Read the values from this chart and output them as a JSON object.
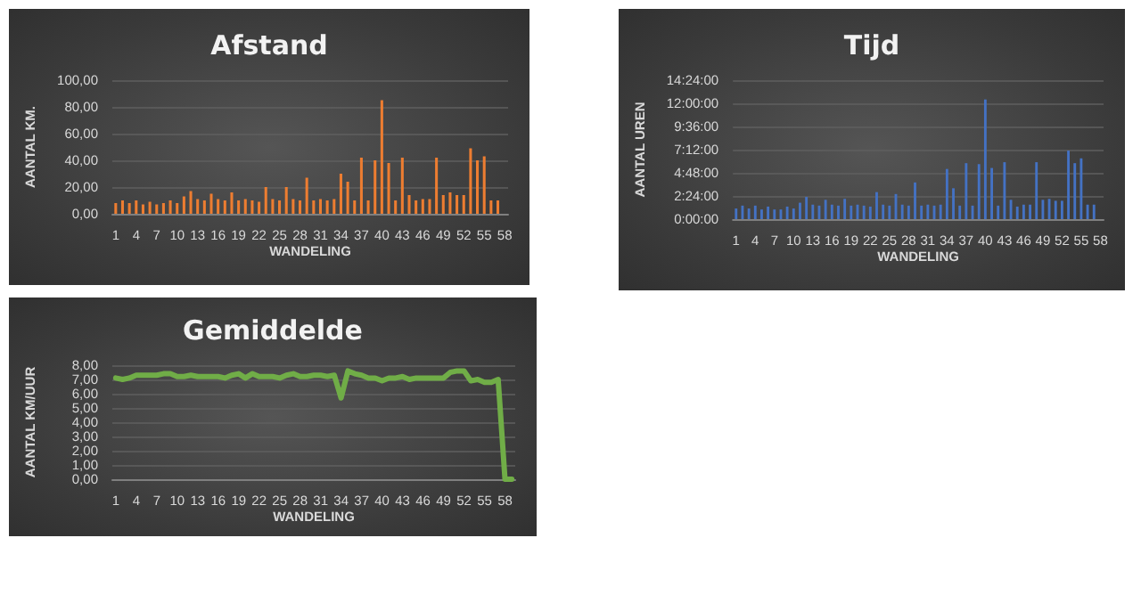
{
  "chart_data": [
    {
      "type": "bar",
      "title": "Afstand",
      "xlabel": "WANDELING",
      "ylabel": "AANTAL KM.",
      "categories": [
        "1",
        null,
        null,
        "4",
        null,
        null,
        "7",
        null,
        null,
        "10",
        null,
        null,
        "13",
        null,
        null,
        "16",
        null,
        null,
        "19",
        null,
        null,
        "22",
        null,
        null,
        "25",
        null,
        null,
        "28",
        null,
        null,
        "31",
        null,
        null,
        "34",
        null,
        null,
        "37",
        null,
        null,
        "40",
        null,
        null,
        "43",
        null,
        null,
        "46",
        null,
        null,
        "49",
        null,
        null,
        "52",
        null,
        null,
        "55",
        null,
        null,
        "58"
      ],
      "values": [
        8,
        10,
        8,
        10,
        7,
        9,
        7,
        8,
        10,
        8,
        13,
        17,
        11,
        10,
        15,
        11,
        10,
        16,
        10,
        11,
        10,
        9,
        20,
        11,
        10,
        20,
        11,
        10,
        27,
        10,
        11,
        10,
        11,
        30,
        24,
        10,
        42,
        10,
        40,
        85,
        38,
        10,
        42,
        14,
        10,
        11,
        11,
        42,
        14,
        16,
        14,
        14,
        49,
        40,
        43,
        10,
        10,
        null
      ],
      "color": "#ed7d31",
      "ylim": [
        0,
        100
      ],
      "yticks": [
        {
          "value": 0,
          "label": "0,00"
        },
        {
          "value": 20,
          "label": "20,00"
        },
        {
          "value": 40,
          "label": "40,00"
        },
        {
          "value": 60,
          "label": "60,00"
        },
        {
          "value": 80,
          "label": "80,00"
        },
        {
          "value": 100,
          "label": "100,00"
        }
      ],
      "grid": "y"
    },
    {
      "type": "bar",
      "title": "Tijd",
      "xlabel": "WANDELING",
      "ylabel": "AANTAL UREN",
      "categories": [
        "1",
        null,
        null,
        "4",
        null,
        null,
        "7",
        null,
        null,
        "10",
        null,
        null,
        "13",
        null,
        null,
        "16",
        null,
        null,
        "19",
        null,
        null,
        "22",
        null,
        null,
        "25",
        null,
        null,
        "28",
        null,
        null,
        "31",
        null,
        null,
        "34",
        null,
        null,
        "37",
        null,
        null,
        "40",
        null,
        null,
        "43",
        null,
        null,
        "46",
        null,
        null,
        "49",
        null,
        null,
        "52",
        null,
        null,
        "55",
        null,
        null,
        "58"
      ],
      "values": [
        1.1,
        1.4,
        1.1,
        1.4,
        1.0,
        1.3,
        1.0,
        1.0,
        1.3,
        1.1,
        1.7,
        2.3,
        1.5,
        1.4,
        2.0,
        1.5,
        1.4,
        2.1,
        1.4,
        1.5,
        1.4,
        1.3,
        2.8,
        1.5,
        1.4,
        2.6,
        1.5,
        1.4,
        3.8,
        1.4,
        1.5,
        1.4,
        1.5,
        5.2,
        3.2,
        1.4,
        5.8,
        1.4,
        5.7,
        12.4,
        5.3,
        1.4,
        5.9,
        2.0,
        1.3,
        1.5,
        1.5,
        5.9,
        2.0,
        2.1,
        1.9,
        1.9,
        7.1,
        5.8,
        6.3,
        1.5,
        1.5,
        null
      ],
      "color": "#4472c4",
      "ylim": [
        0,
        14.4
      ],
      "yticks": [
        {
          "value": 0,
          "label": "0:00:00"
        },
        {
          "value": 2.4,
          "label": "2:24:00"
        },
        {
          "value": 4.8,
          "label": "4:48:00"
        },
        {
          "value": 7.2,
          "label": "7:12:00"
        },
        {
          "value": 9.6,
          "label": "9:36:00"
        },
        {
          "value": 12,
          "label": "12:00:00"
        },
        {
          "value": 14.4,
          "label": "14:24:00"
        }
      ],
      "grid": "y"
    },
    {
      "type": "line",
      "title": "Gemiddelde",
      "xlabel": "WANDELING",
      "ylabel": "AANTAL KM/UUR",
      "categories": [
        "1",
        null,
        null,
        "4",
        null,
        null,
        "7",
        null,
        null,
        "10",
        null,
        null,
        "13",
        null,
        null,
        "16",
        null,
        null,
        "19",
        null,
        null,
        "22",
        null,
        null,
        "25",
        null,
        null,
        "28",
        null,
        null,
        "31",
        null,
        null,
        "34",
        null,
        null,
        "37",
        null,
        null,
        "40",
        null,
        null,
        "43",
        null,
        null,
        "46",
        null,
        null,
        "49",
        null,
        null,
        "52",
        null,
        null,
        "55",
        null,
        null,
        "58",
        null
      ],
      "values": [
        7.1,
        7.0,
        7.1,
        7.3,
        7.3,
        7.3,
        7.3,
        7.4,
        7.4,
        7.2,
        7.2,
        7.3,
        7.2,
        7.2,
        7.2,
        7.2,
        7.1,
        7.3,
        7.4,
        7.1,
        7.4,
        7.2,
        7.2,
        7.2,
        7.1,
        7.3,
        7.4,
        7.2,
        7.2,
        7.3,
        7.3,
        7.2,
        7.3,
        5.7,
        7.6,
        7.4,
        7.3,
        7.1,
        7.1,
        6.9,
        7.1,
        7.1,
        7.2,
        7.0,
        7.1,
        7.1,
        7.1,
        7.1,
        7.1,
        7.5,
        7.6,
        7.6,
        6.9,
        7.0,
        6.8,
        6.8,
        7.0,
        0.0,
        0.0
      ],
      "color": "#70ad47",
      "ylim": [
        0,
        8
      ],
      "yticks": [
        {
          "value": 0,
          "label": "0,00"
        },
        {
          "value": 1,
          "label": "1,00"
        },
        {
          "value": 2,
          "label": "2,00"
        },
        {
          "value": 3,
          "label": "3,00"
        },
        {
          "value": 4,
          "label": "4,00"
        },
        {
          "value": 5,
          "label": "5,00"
        },
        {
          "value": 6,
          "label": "6,00"
        },
        {
          "value": 7,
          "label": "7,00"
        },
        {
          "value": 8,
          "label": "8,00"
        }
      ],
      "grid": "y",
      "marker": "none"
    }
  ]
}
